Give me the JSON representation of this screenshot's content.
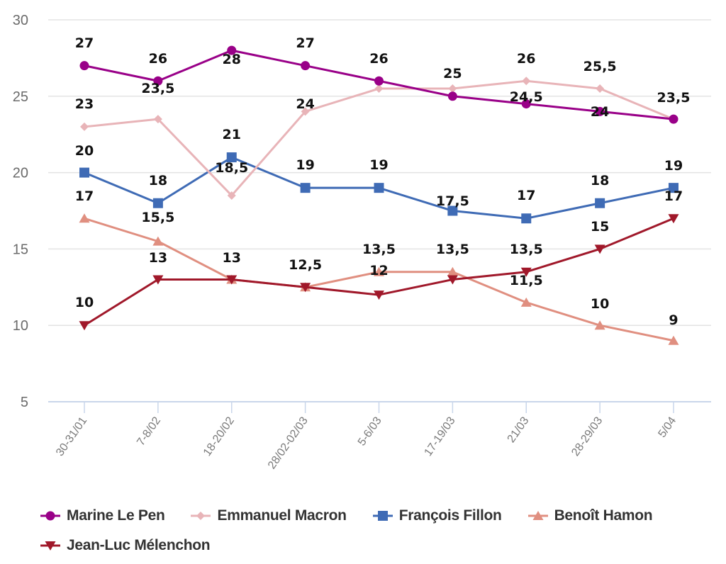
{
  "chart_data": {
    "type": "line",
    "title": "",
    "xlabel": "",
    "ylabel": "",
    "ylim": [
      5,
      30
    ],
    "yticks": [
      5,
      10,
      15,
      20,
      25,
      30
    ],
    "ytick_labels": [
      "5",
      "10",
      "15",
      "20",
      "25",
      "30"
    ],
    "grid": true,
    "legend_position": "bottom-left",
    "categories": [
      "30-31/01",
      "7-8/02",
      "18-20/02",
      "28/02-02/03",
      "5-6/03",
      "17-19/03",
      "21/03",
      "28-29/03",
      "5/04"
    ],
    "series": [
      {
        "name": "Marine Le Pen",
        "color": "#990088",
        "marker": "circle",
        "values": [
          27,
          26,
          28,
          27,
          26,
          25,
          24.5,
          24,
          23.5
        ],
        "labels": [
          "27",
          "26",
          "28",
          "27",
          "26",
          "25",
          "24,5",
          "24",
          "23,5"
        ]
      },
      {
        "name": "Emmanuel Macron",
        "color": "#e8b4b8",
        "marker": "diamond",
        "values": [
          23,
          23.5,
          18.5,
          24,
          25.5,
          25.5,
          26,
          25.5,
          23.5
        ],
        "labels": [
          "23",
          "23,5",
          "18,5",
          "24",
          "",
          "",
          "26",
          "25,5",
          ""
        ]
      },
      {
        "name": "François Fillon",
        "color": "#3f6bb5",
        "marker": "square",
        "values": [
          20,
          18,
          21,
          19,
          19,
          17.5,
          17,
          18,
          19
        ],
        "labels": [
          "20",
          "18",
          "21",
          "19",
          "19",
          "17,5",
          "17",
          "18",
          "19"
        ]
      },
      {
        "name": "Benoît Hamon",
        "color": "#e08f80",
        "marker": "triangle-up",
        "values": [
          17,
          15.5,
          13,
          12.5,
          13.5,
          13.5,
          11.5,
          10,
          9
        ],
        "labels": [
          "17",
          "15,5",
          "",
          "",
          "13,5",
          "13,5",
          "11,5",
          "10",
          "9"
        ]
      },
      {
        "name": "Jean-Luc Mélenchon",
        "color": "#a0182a",
        "marker": "triangle-down",
        "values": [
          10,
          13,
          13,
          12.5,
          12,
          13,
          13.5,
          15,
          17
        ],
        "labels": [
          "10",
          "13",
          "13",
          "12,5",
          "12",
          "",
          "13,5",
          "15",
          "17"
        ]
      }
    ]
  },
  "colors": {
    "grid": "#e3e3e3",
    "axis": "#c9d6ea",
    "ytick_text": "#6b6b6b",
    "xtick_text": "#7a7a7a",
    "data_label": "#111111",
    "legend_text": "#333333"
  }
}
